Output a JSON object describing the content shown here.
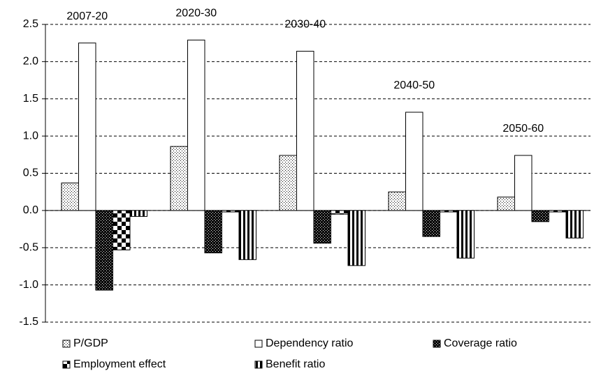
{
  "chart_data": {
    "type": "bar",
    "categories": [
      "2007-20",
      "2020-30",
      "2030-40",
      "2040-50",
      "2050-60"
    ],
    "series": [
      {
        "name": "P/GDP",
        "color": "#000000",
        "values": [
          0.37,
          0.86,
          0.74,
          0.25,
          0.18
        ]
      },
      {
        "name": "Dependency ratio",
        "color": "#000000",
        "values": [
          2.25,
          2.29,
          2.14,
          1.32,
          0.74
        ]
      },
      {
        "name": "Coverage ratio",
        "color": "#000000",
        "values": [
          -1.07,
          -0.57,
          -0.44,
          -0.35,
          -0.15
        ]
      },
      {
        "name": "Employment effect",
        "color": "#000000",
        "values": [
          -0.53,
          -0.02,
          -0.05,
          -0.02,
          -0.02
        ]
      },
      {
        "name": "Benefit ratio",
        "color": "#000000",
        "values": [
          -0.08,
          -0.66,
          -0.74,
          -0.64,
          -0.37
        ]
      }
    ],
    "ylim": [
      -1.5,
      2.5
    ],
    "yticks": [
      2.5,
      {
        "value": 2,
        "label": "2.0"
      },
      1.5,
      {
        "value": 1,
        "label": "1.0"
      },
      0.5,
      {
        "value": 0,
        "label": "0.0"
      },
      -0.5,
      {
        "value": -1,
        "label": "-1.0"
      },
      -1.5
    ],
    "grid": true
  }
}
